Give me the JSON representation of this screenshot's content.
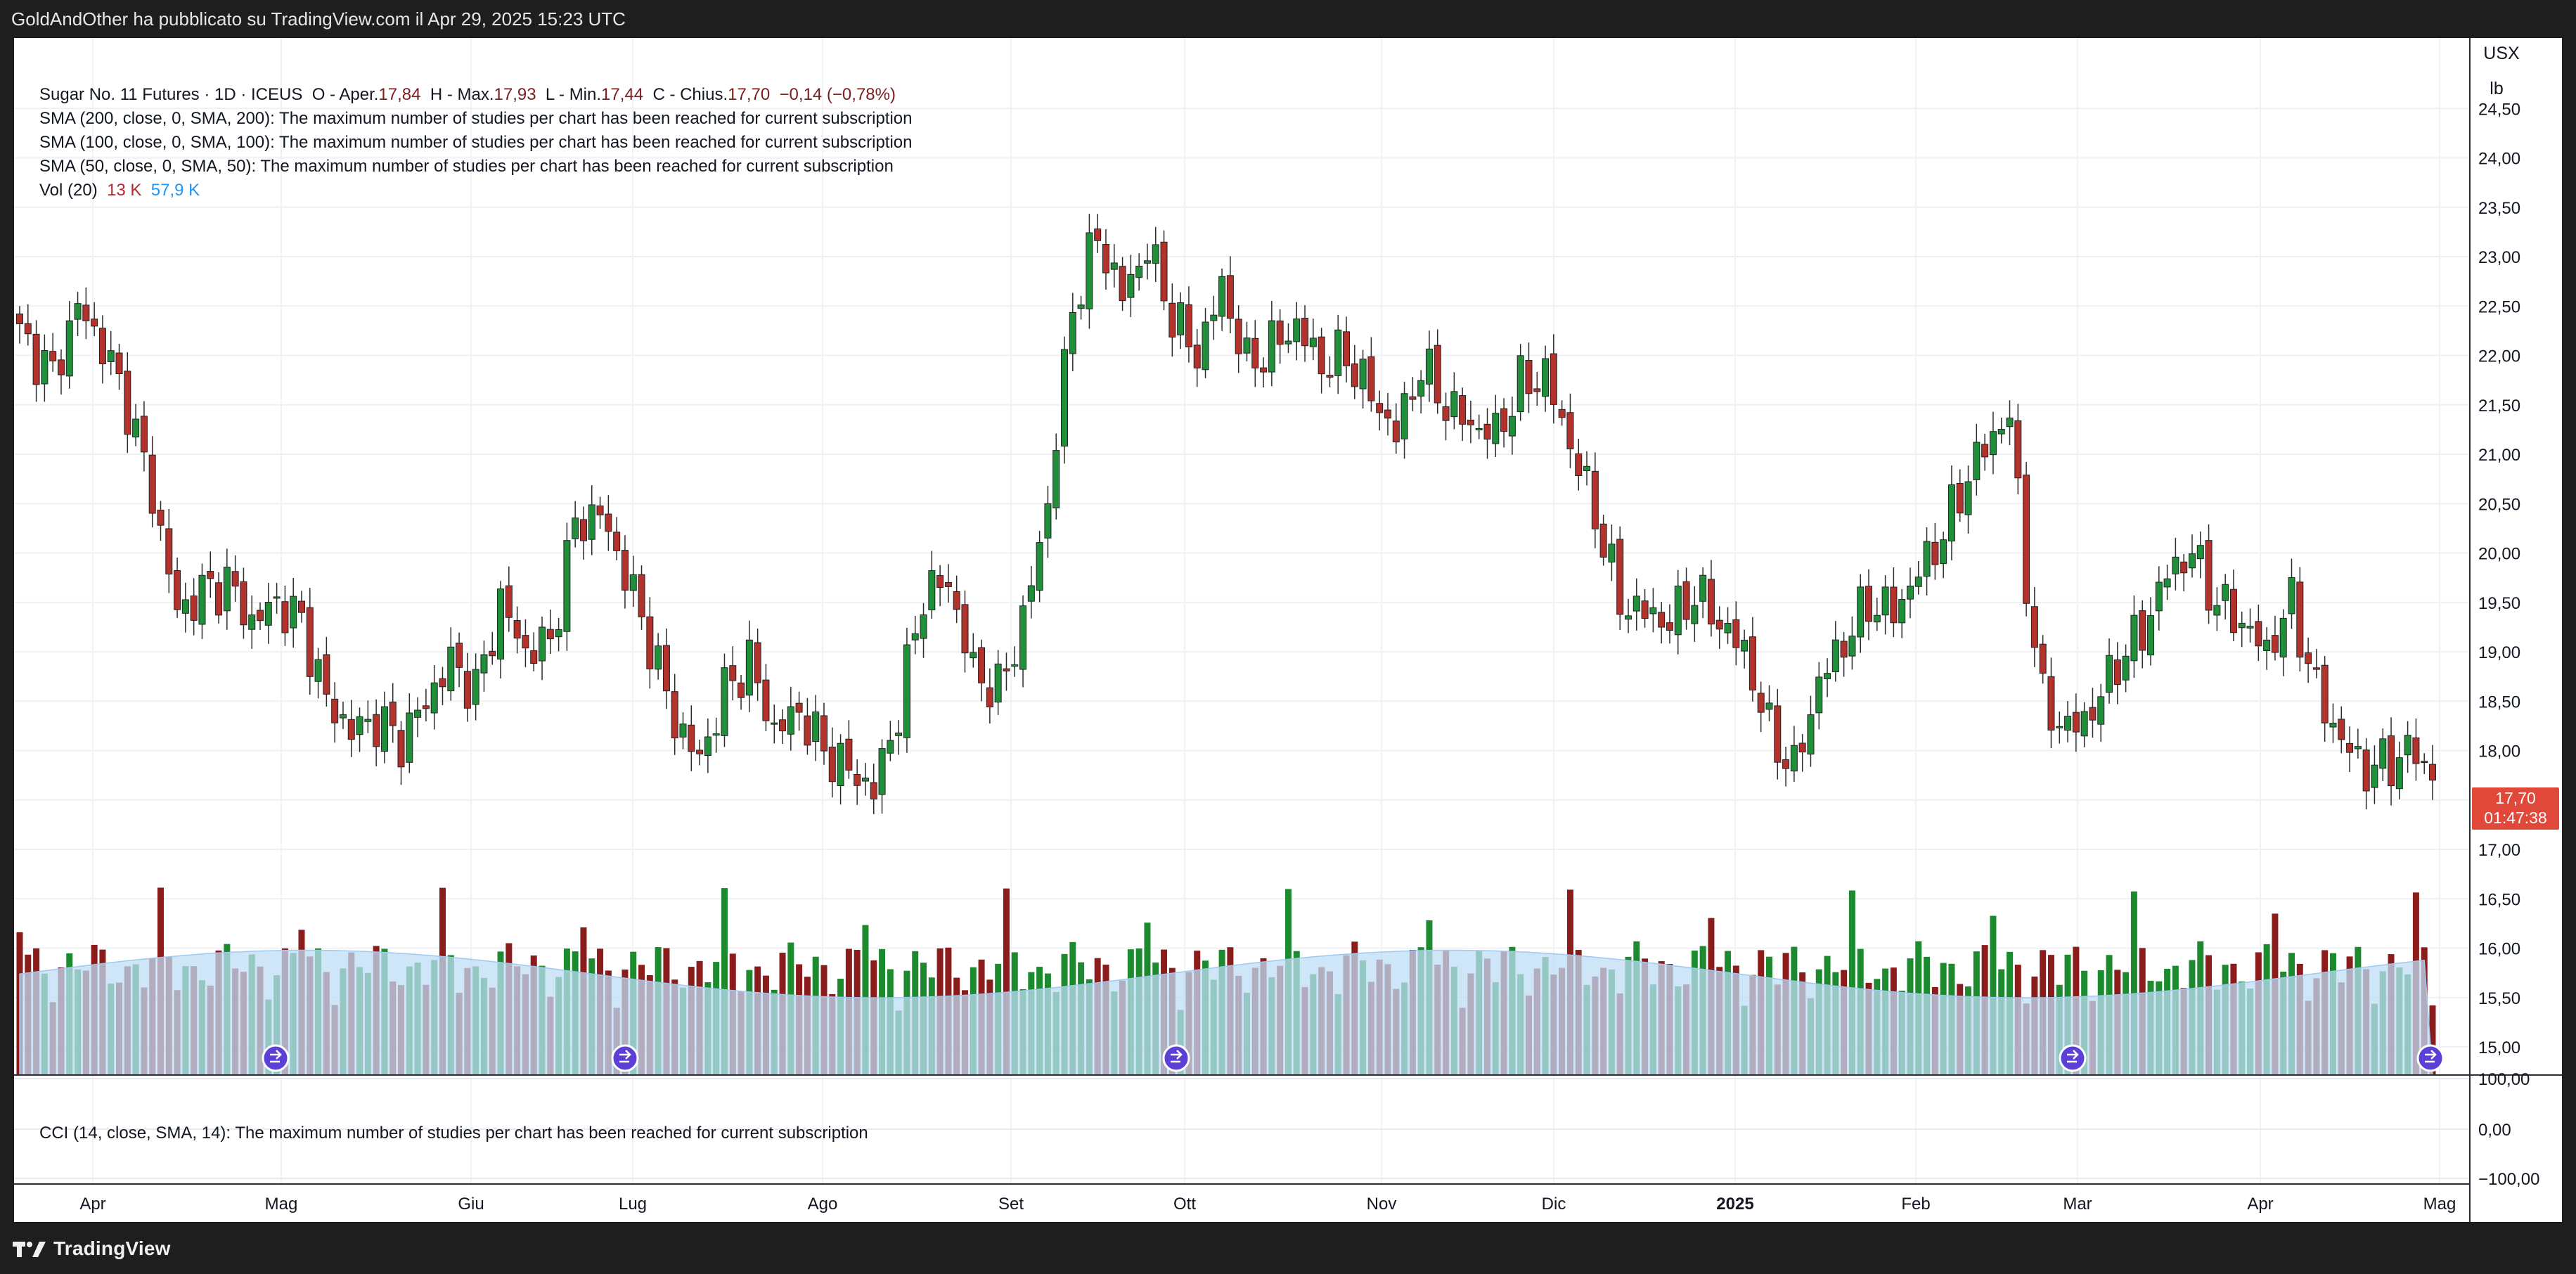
{
  "header": {
    "published_by": "GoldAndOther ha pubblicato su TradingView.com il Apr 29, 2025 15:23 UTC"
  },
  "legend": {
    "symbol": "Sugar No. 11 Futures · 1D · ICEUS",
    "open_label": "O - Aper.",
    "open_value": "17,84",
    "high_label": "H - Max.",
    "high_value": "17,93",
    "low_label": "L - Min.",
    "low_value": "17,44",
    "close_label": "C - Chius.",
    "close_value": "17,70",
    "change": "−0,14 (−0,78%)",
    "sma200": "SMA (200, close, 0, SMA, 200): The maximum number of studies per chart has been reached for current subscription",
    "sma100": "SMA (100, close, 0, SMA, 100): The maximum number of studies per chart has been reached for current subscription",
    "sma50": "SMA (50, close, 0, SMA, 50): The maximum number of studies per chart has been reached for current subscription",
    "vol_label": "Vol (20)",
    "vol_value": "13 K",
    "vol_ma": "57,9 K"
  },
  "cci_legend": "CCI (14, close, SMA, 14): The maximum number of studies per chart has been reached for current subscription",
  "price_axis": {
    "unit_top": "USX",
    "unit_bottom": "lb",
    "last_price": "17,70",
    "countdown": "01:47:38"
  },
  "cci_axis": [
    "100,00",
    "0,00",
    "−100,00"
  ],
  "footer": {
    "brand": "TradingView"
  },
  "colors": {
    "up": "#1f8f3a",
    "down": "#b3322c",
    "vol_up": "#1e8a2f",
    "vol_down": "#8a1c1c",
    "vol_area": "#bfdcf5",
    "dividend": "#5b3fd6"
  },
  "chart_data": {
    "type": "candlestick",
    "ylim": [
      15,
      25
    ],
    "yticks": [
      "15,00",
      "15,50",
      "16,00",
      "16,50",
      "17,00",
      "17,50",
      "18,00",
      "18,50",
      "19,00",
      "19,50",
      "20,00",
      "20,50",
      "21,00",
      "21,50",
      "22,00",
      "22,50",
      "23,00",
      "23,50",
      "24,00",
      "24,50"
    ],
    "xticks": [
      "Apr",
      "Mag",
      "Giu",
      "Lug",
      "Ago",
      "Set",
      "Ott",
      "Nov",
      "Dic",
      "2025",
      "Feb",
      "Mar",
      "Apr",
      "Mag"
    ],
    "close_path": [
      [
        0,
        22.2
      ],
      [
        4,
        21.8
      ],
      [
        7,
        22.5
      ],
      [
        10,
        22.1
      ],
      [
        13,
        21.5
      ],
      [
        16,
        20.6
      ],
      [
        19,
        19.4
      ],
      [
        22,
        19.6
      ],
      [
        25,
        19.7
      ],
      [
        28,
        19.3
      ],
      [
        31,
        19.5
      ],
      [
        34,
        19.3
      ],
      [
        37,
        18.5
      ],
      [
        40,
        18.2
      ],
      [
        43,
        18.3
      ],
      [
        46,
        18.1
      ],
      [
        49,
        18.5
      ],
      [
        52,
        18.9
      ],
      [
        55,
        18.6
      ],
      [
        58,
        19.5
      ],
      [
        61,
        19.0
      ],
      [
        64,
        19.1
      ],
      [
        67,
        20.3
      ],
      [
        70,
        20.4
      ],
      [
        73,
        19.8
      ],
      [
        76,
        19.1
      ],
      [
        79,
        18.3
      ],
      [
        82,
        17.9
      ],
      [
        85,
        18.6
      ],
      [
        88,
        18.9
      ],
      [
        91,
        18.2
      ],
      [
        94,
        18.4
      ],
      [
        97,
        18.0
      ],
      [
        100,
        17.8
      ],
      [
        103,
        17.6
      ],
      [
        106,
        18.4
      ],
      [
        109,
        19.6
      ],
      [
        112,
        19.7
      ],
      [
        115,
        18.8
      ],
      [
        118,
        18.6
      ],
      [
        121,
        19.3
      ],
      [
        124,
        20.5
      ],
      [
        127,
        22.5
      ],
      [
        130,
        23.2
      ],
      [
        133,
        22.6
      ],
      [
        136,
        23.1
      ],
      [
        139,
        22.4
      ],
      [
        142,
        22.0
      ],
      [
        145,
        22.7
      ],
      [
        148,
        21.9
      ],
      [
        151,
        22.1
      ],
      [
        154,
        22.3
      ],
      [
        157,
        21.9
      ],
      [
        160,
        22.0
      ],
      [
        163,
        21.6
      ],
      [
        166,
        21.2
      ],
      [
        169,
        21.9
      ],
      [
        172,
        21.5
      ],
      [
        175,
        21.3
      ],
      [
        178,
        21.2
      ],
      [
        181,
        21.7
      ],
      [
        184,
        21.8
      ],
      [
        187,
        21.1
      ],
      [
        190,
        20.4
      ],
      [
        193,
        19.5
      ],
      [
        196,
        19.4
      ],
      [
        199,
        19.3
      ],
      [
        202,
        19.6
      ],
      [
        205,
        19.3
      ],
      [
        208,
        19.0
      ],
      [
        211,
        18.2
      ],
      [
        214,
        17.8
      ],
      [
        217,
        18.7
      ],
      [
        220,
        19.1
      ],
      [
        223,
        19.5
      ],
      [
        226,
        19.4
      ],
      [
        229,
        19.8
      ],
      [
        232,
        20.2
      ],
      [
        235,
        20.8
      ],
      [
        238,
        21.2
      ],
      [
        240,
        21.4
      ],
      [
        242,
        19.7
      ],
      [
        244,
        18.5
      ],
      [
        247,
        18.2
      ],
      [
        250,
        18.4
      ],
      [
        253,
        18.9
      ],
      [
        256,
        19.2
      ],
      [
        259,
        19.8
      ],
      [
        262,
        20.0
      ],
      [
        265,
        19.5
      ],
      [
        268,
        19.3
      ],
      [
        271,
        19.0
      ],
      [
        274,
        19.5
      ],
      [
        277,
        18.6
      ],
      [
        280,
        18.1
      ],
      [
        283,
        17.8
      ],
      [
        286,
        17.9
      ],
      [
        289,
        18.0
      ],
      [
        291,
        17.7
      ]
    ],
    "volume_ylim": [
      0,
      130000
    ],
    "volume_ma_level": 57900,
    "last_volume": 13000,
    "cci_ylim": [
      -100,
      100
    ]
  }
}
